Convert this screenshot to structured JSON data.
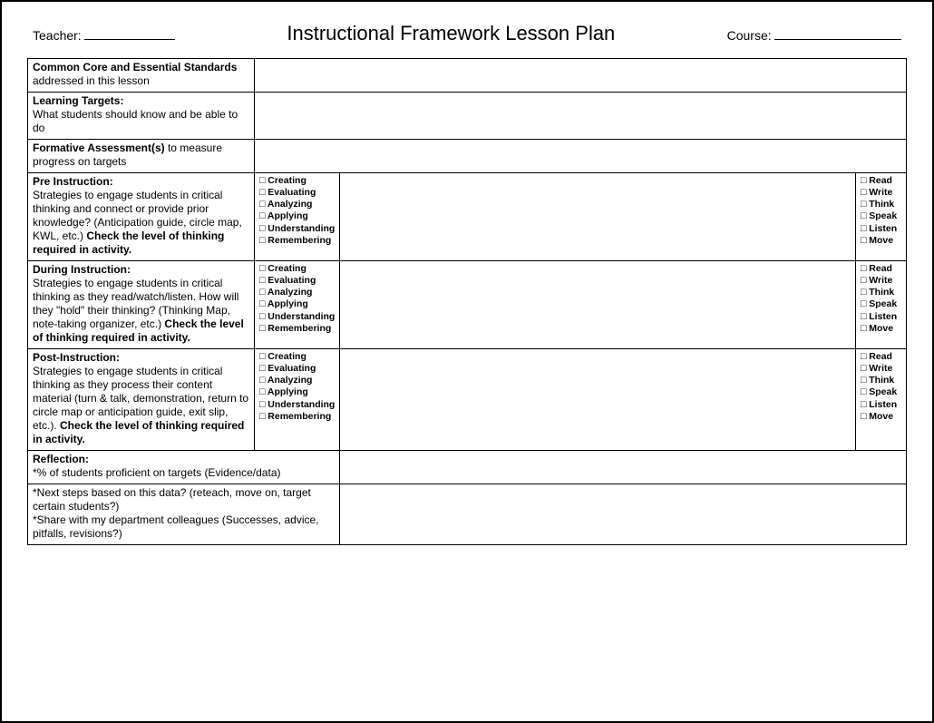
{
  "header": {
    "teacher_label": "Teacher:",
    "title": "Instructional Framework Lesson Plan",
    "course_label": "Course:"
  },
  "rows": {
    "r1_bold": "Common Core and Essential Standards",
    "r1_rest": " addressed in this lesson",
    "r2_bold": "Learning Targets:",
    "r2_desc": "What students should know and be able to do",
    "r3_bold": "Formative Assessment(s)",
    "r3_rest": "  to measure progress on targets",
    "r4_bold": "Pre Instruction:",
    "r4_desc_a": "Strategies to engage students in critical thinking and connect or provide prior knowledge? (Anticipation guide, circle map, KWL, etc.)  ",
    "r4_desc_b": "Check the level of thinking required in activity.",
    "r5_bold": "During Instruction:",
    "r5_desc_a": "Strategies to engage students in critical thinking as they read/watch/listen. How will they \"hold\" their thinking? (Thinking Map, note-taking organizer, etc.)  ",
    "r5_desc_b": "Check the level of thinking required in activity.",
    "r6_bold": "Post-Instruction:",
    "r6_desc_a": "Strategies to engage students in critical thinking as they process their content material (turn & talk, demonstration, return to circle map or anticipation guide, exit slip, etc.).  ",
    "r6_desc_b": "Check the level of thinking required in activity.",
    "r7_bold": "Reflection:",
    "r7_desc": "*% of students proficient on targets (Evidence/data)",
    "r8_l1": "*Next steps based on this data? (reteach, move on, target certain students?)",
    "r8_l2": "*Share with my department colleagues (Successes, advice, pitfalls, revisions?)"
  },
  "levels": {
    "l1": "Creating",
    "l2": "Evaluating",
    "l3": "Analyzing",
    "l4": "Applying",
    "l5": "Understanding",
    "l6": "Remembering"
  },
  "modes": {
    "m1": "Read",
    "m2": "Write",
    "m3": "Think",
    "m4": "Speak",
    "m5": "Listen",
    "m6": "Move"
  }
}
